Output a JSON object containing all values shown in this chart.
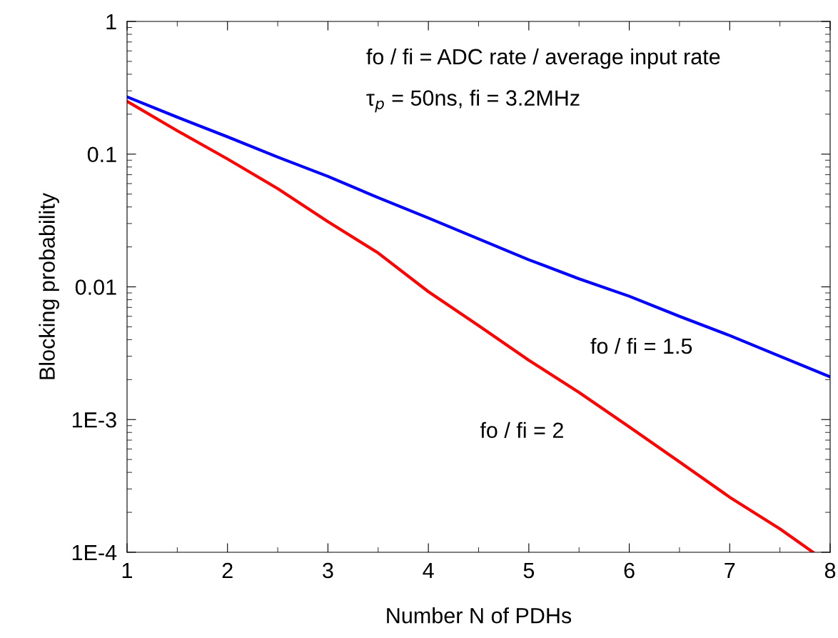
{
  "chart_data": {
    "type": "line",
    "xlabel": "Number N of PDHs",
    "ylabel": "Blocking probability",
    "log": "y",
    "xlim": [
      1,
      8
    ],
    "xticks": [
      1,
      2,
      3,
      4,
      5,
      6,
      7,
      8
    ],
    "ylim": [
      0.0001,
      1
    ],
    "yticks": [
      {
        "value": 0.0001,
        "label": "1E-4"
      },
      {
        "value": 0.001,
        "label": "1E-3"
      },
      0.01,
      0.1,
      1
    ],
    "grid": false,
    "legend": false,
    "marker": "none",
    "line_style": "solid",
    "series": [
      {
        "name": "fo / fi = 1.5",
        "color": "#0000ff",
        "x": [
          1,
          1.5,
          2,
          2.5,
          3,
          3.5,
          4,
          4.5,
          5,
          5.5,
          6,
          6.5,
          7,
          7.5,
          8
        ],
        "values": [
          0.27,
          0.19,
          0.135,
          0.095,
          0.068,
          0.047,
          0.033,
          0.023,
          0.016,
          0.0115,
          0.0085,
          0.006,
          0.0043,
          0.003,
          0.0021
        ]
      },
      {
        "name": "fo / fi = 2",
        "color": "#ff0000",
        "x": [
          1,
          1.5,
          2,
          2.5,
          3,
          3.5,
          4,
          4.5,
          5,
          5.5,
          6,
          6.5,
          7,
          7.5,
          7.83
        ],
        "values": [
          0.25,
          0.15,
          0.092,
          0.055,
          0.031,
          0.018,
          0.0092,
          0.0051,
          0.0028,
          0.0016,
          0.00088,
          0.00048,
          0.00026,
          0.00015,
          0.0001
        ]
      }
    ],
    "annotations": [
      "fo / fi = ADC rate / average input rate",
      "τ$_{p}$ = 50ns, fi = 3.2MHz"
    ]
  }
}
